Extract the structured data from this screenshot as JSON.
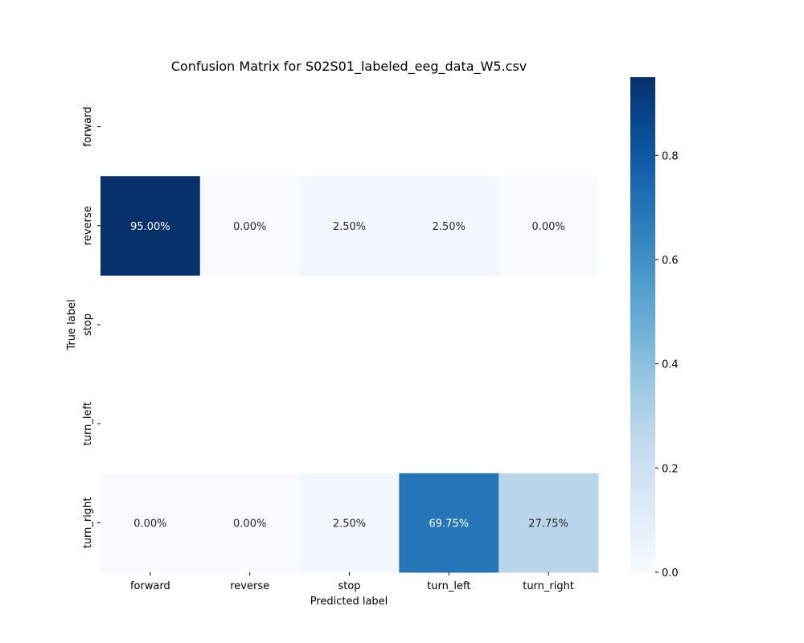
{
  "chart_data": {
    "type": "heatmap",
    "title": "Confusion Matrix for S02S01_labeled_eeg_data_W5.csv",
    "xlabel": "Predicted label",
    "ylabel": "True label",
    "x_categories": [
      "forward",
      "reverse",
      "stop",
      "turn_left",
      "turn_right"
    ],
    "y_categories": [
      "forward",
      "reverse",
      "stop",
      "turn_left",
      "turn_right"
    ],
    "values": [
      [
        null,
        null,
        null,
        null,
        null
      ],
      [
        0.95,
        0.0,
        0.025,
        0.025,
        0.0
      ],
      [
        null,
        null,
        null,
        null,
        null
      ],
      [
        null,
        null,
        null,
        null,
        null
      ],
      [
        0.0,
        0.0,
        0.025,
        0.6975,
        0.2775
      ]
    ],
    "annotations": [
      [
        null,
        null,
        null,
        null,
        null
      ],
      [
        "95.00%",
        "0.00%",
        "2.50%",
        "2.50%",
        "0.00%"
      ],
      [
        null,
        null,
        null,
        null,
        null
      ],
      [
        null,
        null,
        null,
        null,
        null
      ],
      [
        "0.00%",
        "0.00%",
        "2.50%",
        "69.75%",
        "27.75%"
      ]
    ],
    "colormap": "Blues",
    "colorbar": {
      "range": [
        0,
        0.95
      ],
      "ticks": [
        0.0,
        0.2,
        0.4,
        0.6,
        0.8
      ],
      "tick_labels": [
        "0.0",
        "0.2",
        "0.4",
        "0.6",
        "0.8"
      ]
    },
    "grid": false
  }
}
